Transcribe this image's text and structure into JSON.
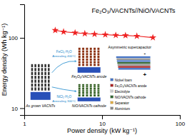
{
  "chart_data": {
    "type": "line",
    "title": "Fe₂O₃/VACNTs//NiO/VACNTs",
    "xlabel": "Power density (kW kg⁻¹)",
    "ylabel": "Energy density (Wh kg⁻¹)",
    "x": [
      2.5,
      3.2,
      4.5,
      6.0,
      8.0,
      11.0,
      15.0,
      20.0,
      28.0,
      45.0
    ],
    "values": [
      128,
      122,
      118,
      115,
      113,
      111,
      109,
      108,
      106,
      101
    ],
    "color": "#ee2222",
    "marker": "star",
    "log": true,
    "grid": false,
    "xlim": [
      1,
      100
    ],
    "xticks": [
      1,
      10,
      100
    ],
    "ylim": [
      8,
      300
    ],
    "yticks": [
      10,
      100
    ],
    "annotations": [
      "As grown VACNTs",
      "Fe₂O₃/VACNTs anode",
      "NiO/VACNTs cathode",
      "FeCl₃·H₂O",
      "Annealing 400°C",
      "NiCl₂·H₂O",
      "Annealing 300°C",
      "Asymmetric supercapacitor",
      "-",
      "+",
      "Nickel foam",
      "Fe₂O₃/VACNTs anode",
      "Electrolyte",
      "NiO/VACNTs cathode",
      "Separator",
      "Aluminium"
    ]
  }
}
